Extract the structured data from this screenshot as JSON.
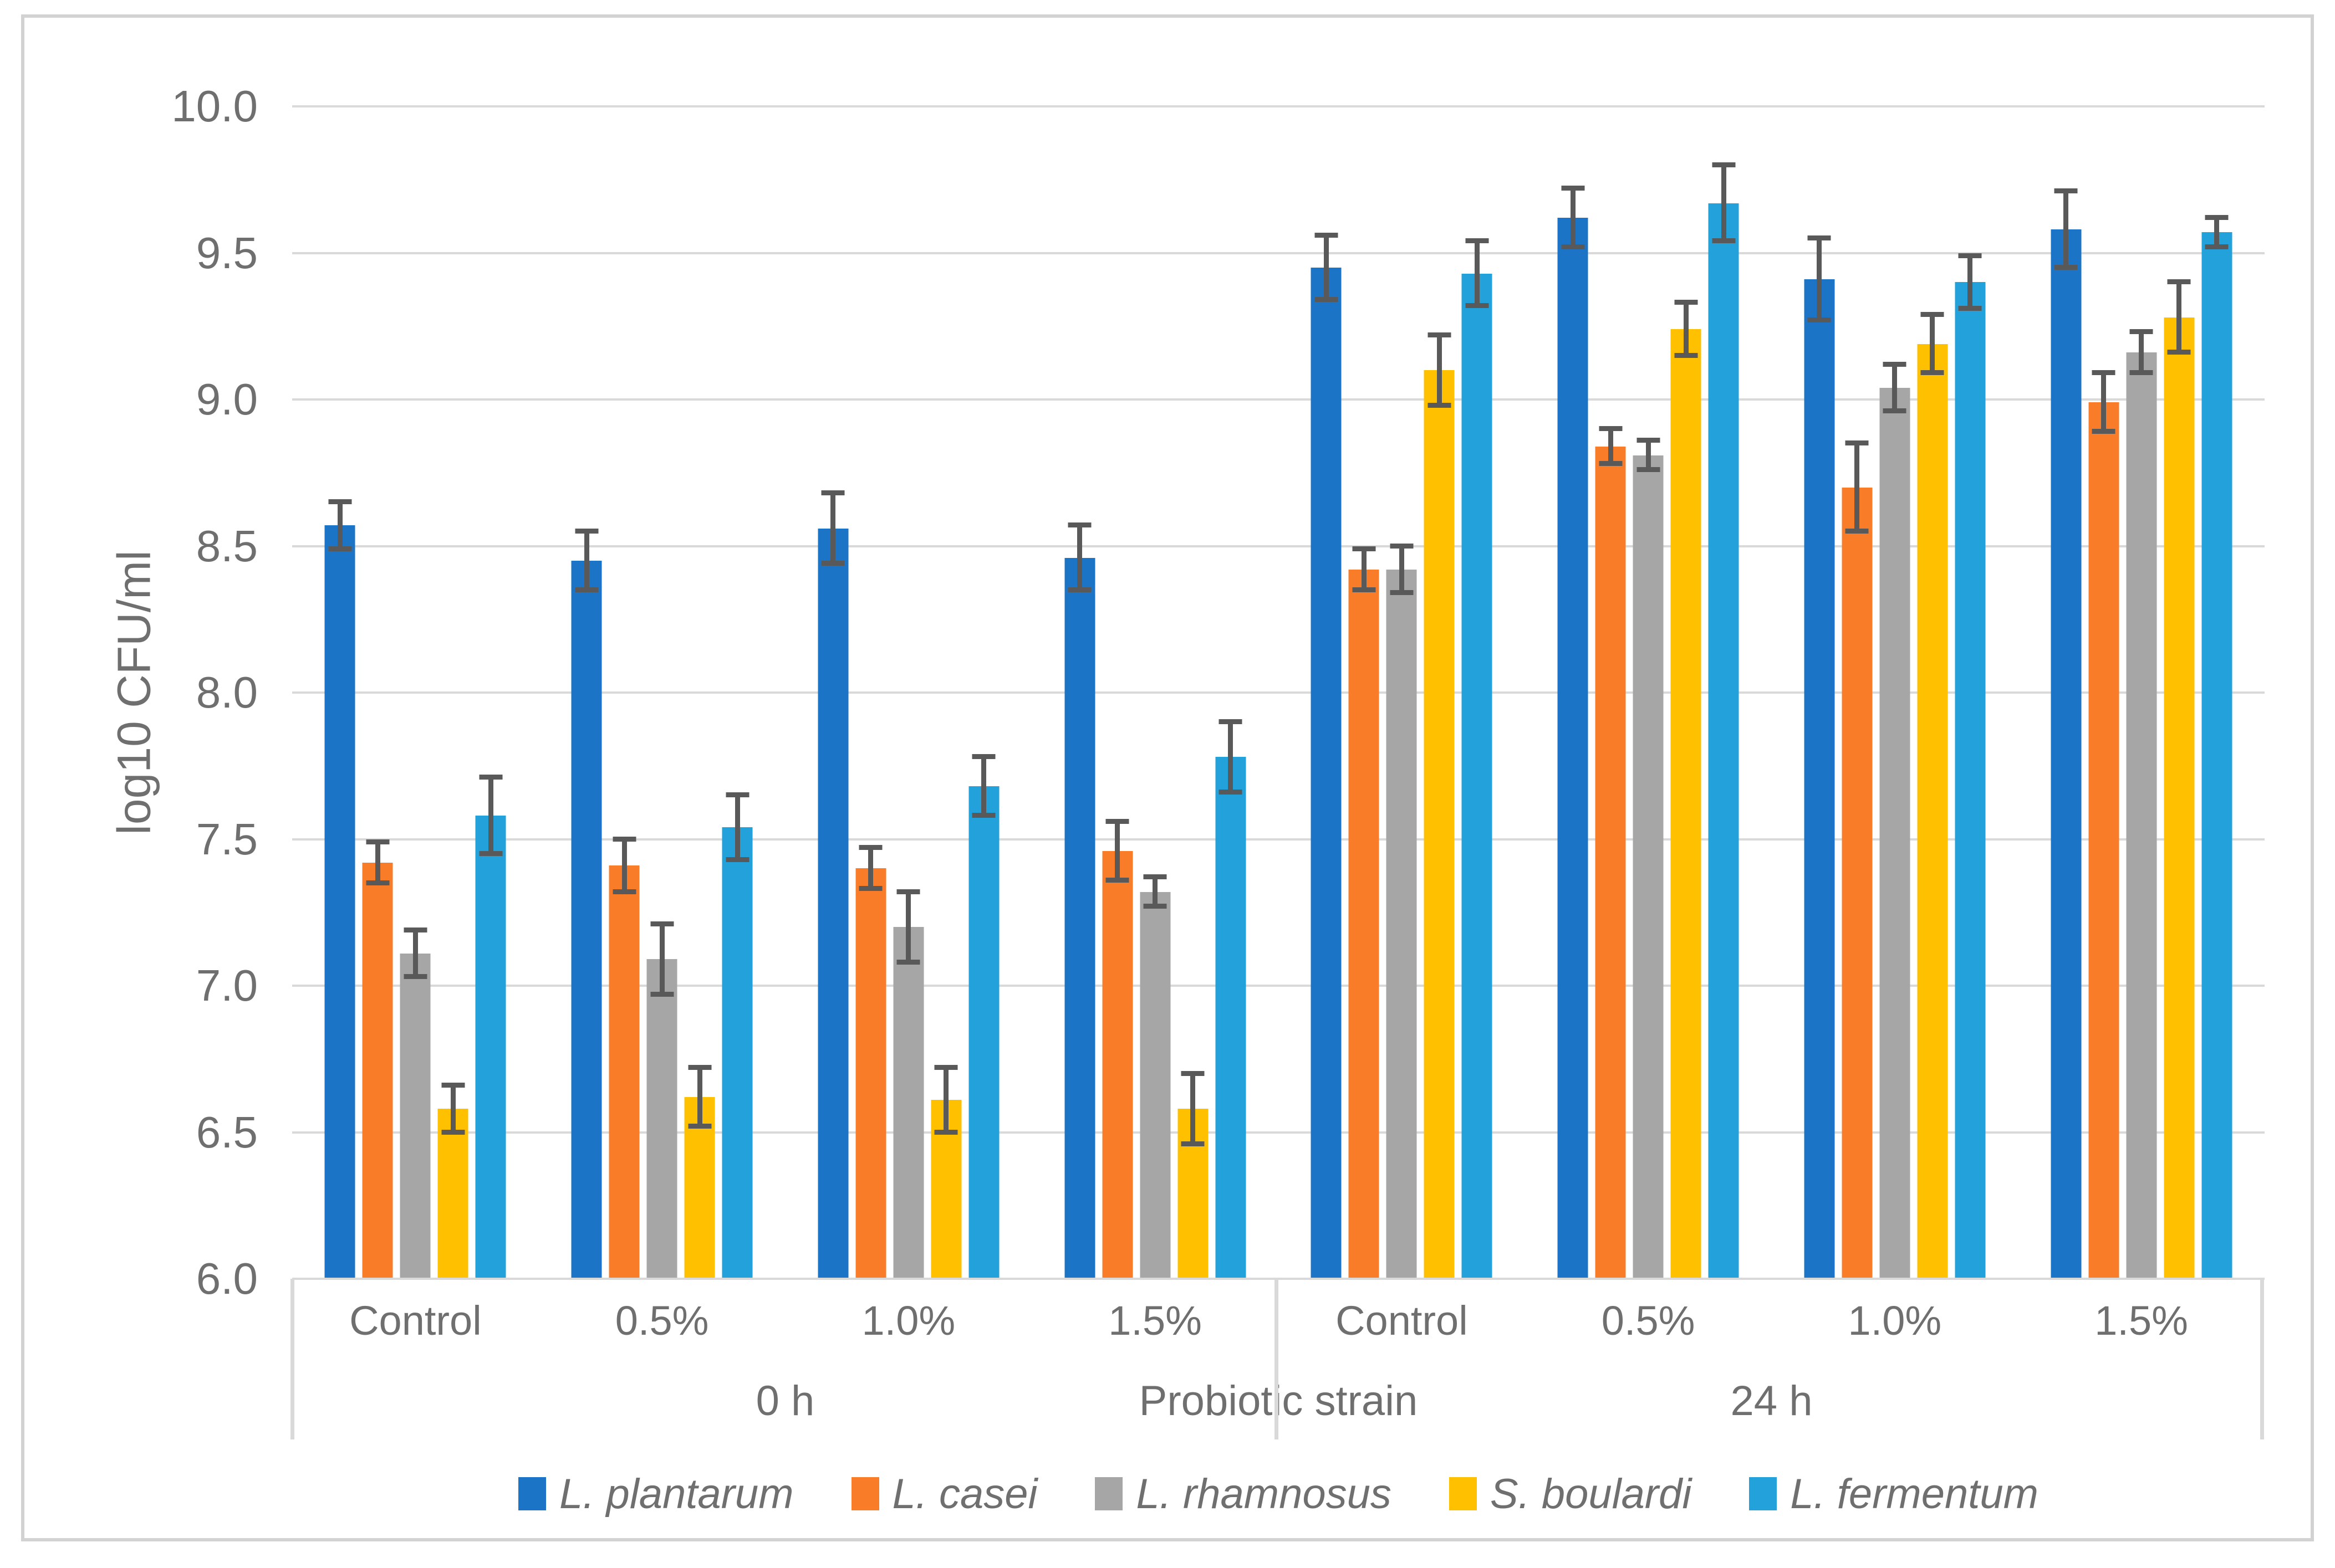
{
  "chart_data": {
    "type": "bar",
    "title": "",
    "ylabel": "log10 CFU/ml",
    "xlabel": "Probiotic strain",
    "ylim": [
      6.0,
      10.0
    ],
    "ytick_step": 0.5,
    "yticks": [
      "10.0",
      "9.5",
      "9.0",
      "8.5",
      "8.0",
      "7.5",
      "7.0",
      "6.5",
      "6.0"
    ],
    "grid": true,
    "legend_position": "bottom",
    "sections": [
      {
        "label": "0 h",
        "categories": [
          "Control",
          "0.5%",
          "1.0%",
          "1.5%"
        ]
      },
      {
        "label": "24 h",
        "categories": [
          "Control",
          "0.5%",
          "1.0%",
          "1.5%"
        ]
      }
    ],
    "categories": [
      "Control",
      "0.5%",
      "1.0%",
      "1.5%",
      "Control",
      "0.5%",
      "1.0%",
      "1.5%"
    ],
    "series": [
      {
        "name": "L. plantarum",
        "color": "#1B74C5",
        "values": [
          8.57,
          8.45,
          8.56,
          8.46,
          9.45,
          9.62,
          9.41,
          9.58
        ],
        "errors": [
          0.08,
          0.1,
          0.12,
          0.11,
          0.11,
          0.1,
          0.14,
          0.13
        ]
      },
      {
        "name": "L. casei",
        "color": "#F97D28",
        "values": [
          7.42,
          7.41,
          7.4,
          7.46,
          8.42,
          8.84,
          8.7,
          8.99
        ],
        "errors": [
          0.07,
          0.09,
          0.07,
          0.1,
          0.07,
          0.06,
          0.15,
          0.1
        ]
      },
      {
        "name": "L. rhamnosus",
        "color": "#A6A6A6",
        "values": [
          7.11,
          7.09,
          7.2,
          7.32,
          8.42,
          8.81,
          9.04,
          9.16
        ],
        "errors": [
          0.08,
          0.12,
          0.12,
          0.05,
          0.08,
          0.05,
          0.08,
          0.07
        ]
      },
      {
        "name": "S. boulardi",
        "color": "#FFC000",
        "values": [
          6.58,
          6.62,
          6.61,
          6.58,
          9.1,
          9.24,
          9.19,
          9.28
        ],
        "errors": [
          0.08,
          0.1,
          0.11,
          0.12,
          0.12,
          0.09,
          0.1,
          0.12
        ]
      },
      {
        "name": "L. fermentum",
        "color": "#22A1DB",
        "values": [
          7.58,
          7.54,
          7.68,
          7.78,
          9.43,
          9.67,
          9.4,
          9.57
        ],
        "errors": [
          0.13,
          0.11,
          0.1,
          0.12,
          0.11,
          0.13,
          0.09,
          0.05
        ]
      }
    ],
    "colors": {
      "gridline": "#D9D9D9",
      "error_bar": "#595959",
      "text": "#6F6F6F",
      "frame_border": "#D2D2D2"
    }
  }
}
